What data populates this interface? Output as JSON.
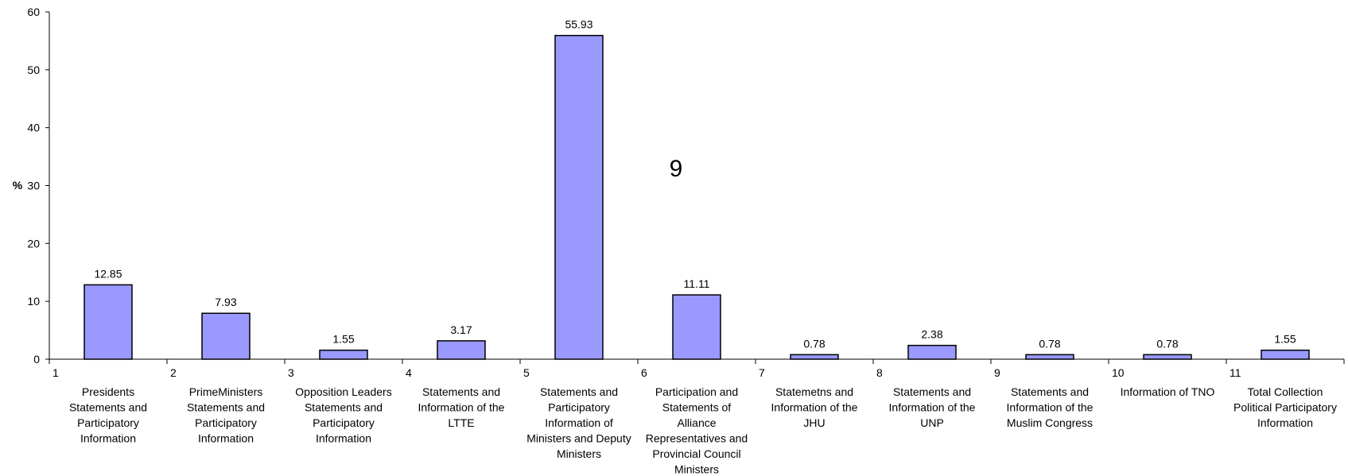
{
  "chart_data": {
    "type": "bar",
    "title": "",
    "xlabel": "",
    "ylabel": "%",
    "ylim": [
      0,
      60
    ],
    "yticks": [
      0,
      10,
      20,
      30,
      40,
      50,
      60
    ],
    "grid": false,
    "legend": "none",
    "bar_color": "#9999ff",
    "bar_edge_color": "#000000",
    "annotation": "9",
    "categories": [
      {
        "num": "1",
        "lines": [
          "Presidents",
          "Statements and",
          "Participatory",
          "Information"
        ]
      },
      {
        "num": "2",
        "lines": [
          "PrimeMinisters",
          "Statements and",
          "Participatory",
          "Information"
        ]
      },
      {
        "num": "3",
        "lines": [
          "Opposition Leaders",
          "Statements and",
          "Participatory",
          "Information"
        ]
      },
      {
        "num": "4",
        "lines": [
          "Statements and",
          "Information of the",
          "LTTE"
        ]
      },
      {
        "num": "5",
        "lines": [
          "Statements and",
          "Participatory",
          "Information of",
          "Ministers and Deputy",
          "Ministers"
        ]
      },
      {
        "num": "6",
        "lines": [
          "Participation and",
          "Statements of",
          "Alliance",
          "Representatives and",
          "Provincial Council",
          "Ministers"
        ]
      },
      {
        "num": "7",
        "lines": [
          "Statemetns and",
          "Information of the",
          "JHU"
        ]
      },
      {
        "num": "8",
        "lines": [
          "Statements and",
          "Information of the",
          "UNP"
        ]
      },
      {
        "num": "9",
        "lines": [
          "Statements and",
          "Information of the",
          "Muslim Congress"
        ]
      },
      {
        "num": "10",
        "lines": [
          "Information of TNO"
        ]
      },
      {
        "num": "11",
        "lines": [
          "Total Collection",
          "Political Participatory",
          "Information"
        ]
      }
    ],
    "values": [
      12.85,
      7.93,
      1.55,
      3.17,
      55.93,
      11.11,
      0.78,
      2.38,
      0.78,
      0.78,
      1.55
    ],
    "value_labels": [
      "12.85",
      "7.93",
      "1.55",
      "3.17",
      "55.93",
      "11.11",
      "0.78",
      "2.38",
      "0.78",
      "0.78",
      "1.55"
    ]
  }
}
